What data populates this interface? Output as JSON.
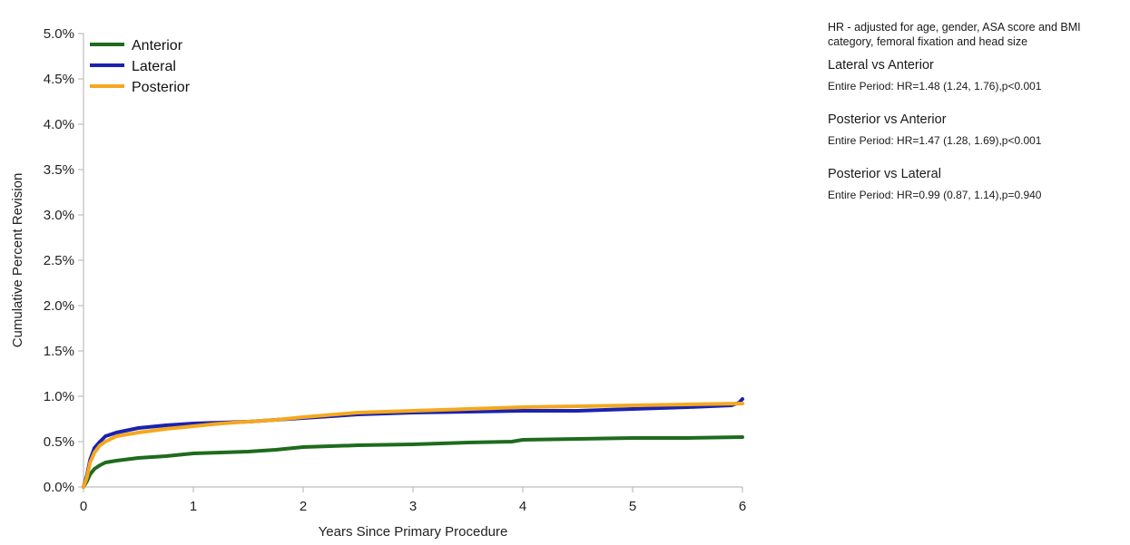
{
  "chart_data": {
    "type": "line",
    "xlabel": "Years Since Primary Procedure",
    "ylabel": "Cumulative Percent Revision",
    "xlim": [
      0,
      6
    ],
    "ylim": [
      0,
      5
    ],
    "x_ticks": [
      0,
      1,
      2,
      3,
      4,
      5,
      6
    ],
    "x_tick_labels": [
      "0",
      "1",
      "2",
      "3",
      "4",
      "5",
      "6"
    ],
    "y_ticks": [
      0,
      0.5,
      1,
      1.5,
      2,
      2.5,
      3,
      3.5,
      4,
      4.5,
      5
    ],
    "y_tick_labels": [
      "0.0%",
      "0.5%",
      "1.0%",
      "1.5%",
      "2.0%",
      "2.5%",
      "3.0%",
      "3.5%",
      "4.0%",
      "4.5%",
      "5.0%"
    ],
    "grid": false,
    "legend_position": "top-left",
    "series": [
      {
        "name": "Anterior",
        "color": "#1e6b1e",
        "x": [
          0,
          0.03,
          0.06,
          0.1,
          0.15,
          0.2,
          0.3,
          0.5,
          0.75,
          1,
          1.25,
          1.5,
          1.75,
          2,
          2.5,
          3,
          3.5,
          3.9,
          4,
          4.5,
          5,
          5.5,
          6
        ],
        "y": [
          0,
          0.06,
          0.14,
          0.2,
          0.24,
          0.27,
          0.29,
          0.32,
          0.34,
          0.37,
          0.38,
          0.39,
          0.41,
          0.44,
          0.46,
          0.47,
          0.49,
          0.5,
          0.52,
          0.53,
          0.54,
          0.54,
          0.55
        ]
      },
      {
        "name": "Lateral",
        "color": "#1a22b0",
        "x": [
          0,
          0.03,
          0.06,
          0.1,
          0.15,
          0.2,
          0.3,
          0.5,
          0.75,
          1,
          1.25,
          1.5,
          1.75,
          2,
          2.5,
          3,
          3.5,
          4,
          4.5,
          5,
          5.5,
          5.9,
          5.97,
          6
        ],
        "y": [
          0,
          0.12,
          0.3,
          0.43,
          0.5,
          0.56,
          0.6,
          0.65,
          0.68,
          0.7,
          0.71,
          0.72,
          0.74,
          0.76,
          0.8,
          0.82,
          0.83,
          0.84,
          0.84,
          0.86,
          0.88,
          0.9,
          0.93,
          0.97
        ]
      },
      {
        "name": "Posterior",
        "color": "#f5a81e",
        "x": [
          0,
          0.03,
          0.06,
          0.1,
          0.15,
          0.2,
          0.3,
          0.5,
          0.75,
          1,
          1.25,
          1.5,
          1.75,
          2,
          2.5,
          3,
          3.5,
          4,
          4.5,
          5,
          5.5,
          6
        ],
        "y": [
          0,
          0.1,
          0.27,
          0.38,
          0.46,
          0.5,
          0.56,
          0.6,
          0.64,
          0.67,
          0.7,
          0.72,
          0.74,
          0.77,
          0.82,
          0.84,
          0.86,
          0.88,
          0.89,
          0.9,
          0.91,
          0.92
        ]
      }
    ]
  },
  "stats": {
    "note": "HR - adjusted for age, gender, ASA score and BMI category, femoral fixation and head size",
    "comparisons": [
      {
        "title": "Lateral vs Anterior",
        "value": "Entire Period: HR=1.48 (1.24, 1.76),p<0.001"
      },
      {
        "title": "Posterior vs Anterior",
        "value": "Entire Period: HR=1.47 (1.28, 1.69),p<0.001"
      },
      {
        "title": "Posterior vs Lateral",
        "value": "Entire Period: HR=0.99 (0.87, 1.14),p=0.940"
      }
    ]
  }
}
